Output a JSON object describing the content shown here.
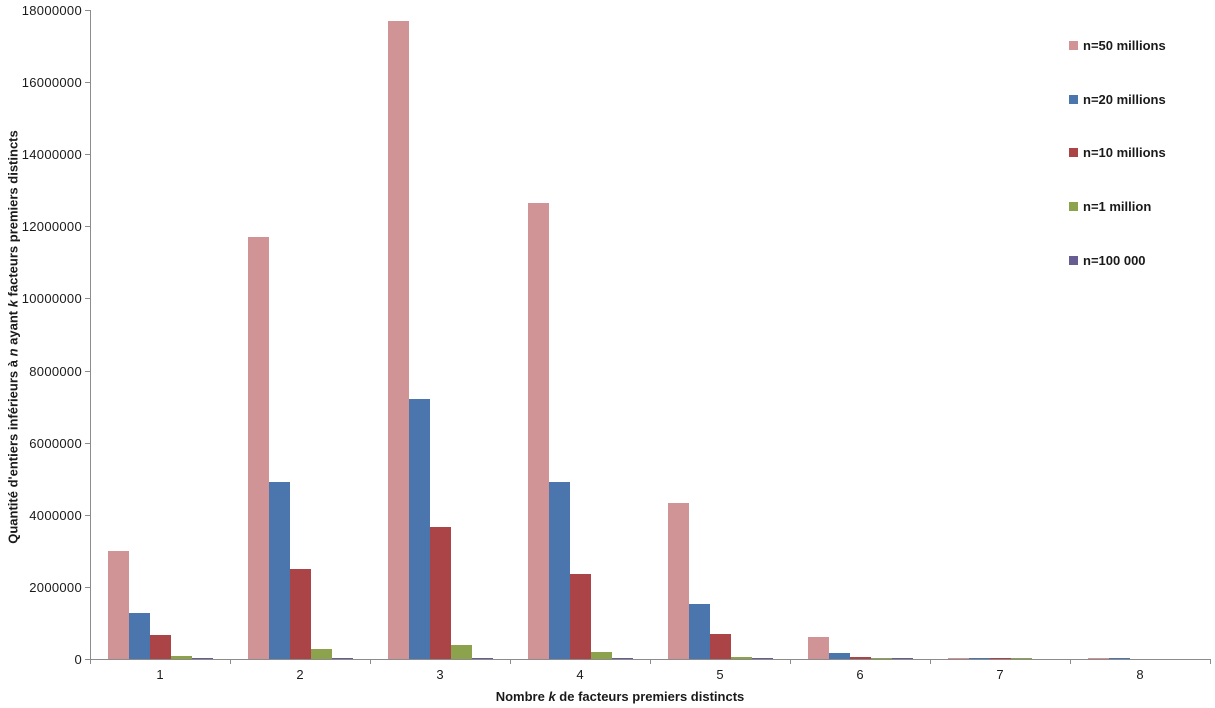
{
  "chart_data": {
    "type": "bar",
    "title": "",
    "categories": [
      "1",
      "2",
      "3",
      "4",
      "5",
      "6",
      "7",
      "8"
    ],
    "series": [
      {
        "name": "n=50 millions",
        "color": "#D19496",
        "values": [
          3000000,
          11700000,
          17700000,
          12650000,
          4320000,
          600000,
          25000,
          500
        ]
      },
      {
        "name": "n=20 millions",
        "color": "#4B76AD",
        "values": [
          1270000,
          4900000,
          7200000,
          4900000,
          1520000,
          165000,
          8000,
          100
        ]
      },
      {
        "name": "n=10 millions",
        "color": "#AB4446",
        "values": [
          665000,
          2510000,
          3650000,
          2370000,
          690000,
          57000,
          2000,
          0
        ]
      },
      {
        "name": "n=1 million",
        "color": "#8CA24C",
        "values": [
          78500,
          290000,
          380000,
          208000,
          42500,
          2300,
          10,
          0
        ]
      },
      {
        "name": "n=100 000",
        "color": "#675D93",
        "values": [
          9600,
          34000,
          39000,
          16000,
          1800,
          20,
          0,
          0
        ]
      }
    ],
    "xlabel_parts": [
      {
        "text": "Nombre ",
        "italic": false
      },
      {
        "text": "k",
        "italic": true
      },
      {
        "text": " de facteurs premiers distincts",
        "italic": false
      }
    ],
    "ylabel_parts": [
      {
        "text": "Quantité d'entiers inférieurs à ",
        "italic": false
      },
      {
        "text": "n",
        "italic": true
      },
      {
        "text": " ayant ",
        "italic": false
      },
      {
        "text": "k",
        "italic": true
      },
      {
        "text": " facteurs premiers distincts",
        "italic": false
      }
    ],
    "yticks": [
      "0",
      "2000000",
      "4000000",
      "6000000",
      "8000000",
      "10000000",
      "12000000",
      "14000000",
      "16000000",
      "18000000"
    ],
    "ylim": [
      0,
      18000000
    ],
    "ytick_step": 2000000,
    "legend_position": "top-right",
    "grid": false,
    "axis_color": "#8C8C8C",
    "text_color": "#1a1a1a"
  }
}
